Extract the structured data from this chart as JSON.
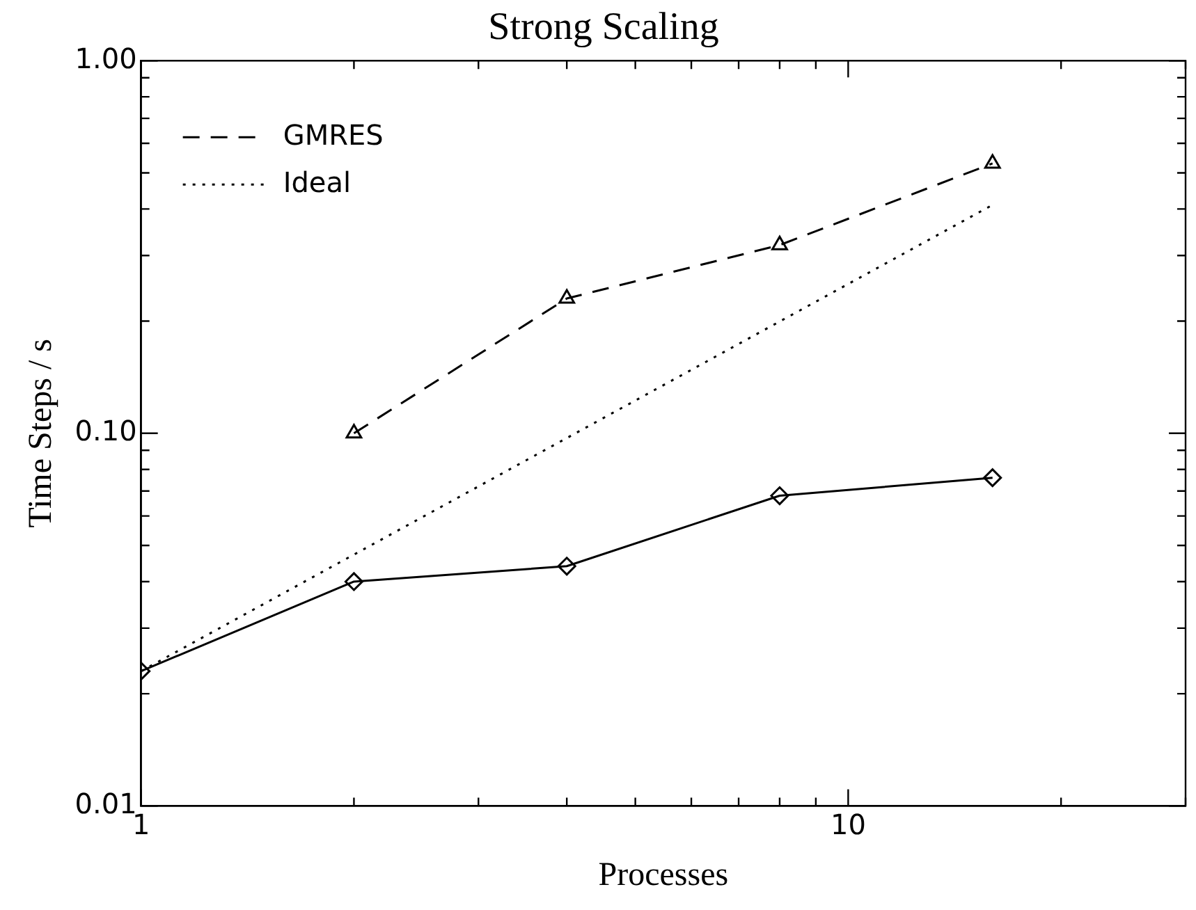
{
  "chart_data": {
    "type": "line",
    "title": "Strong Scaling",
    "xlabel": "Processes",
    "ylabel": "Time Steps / s",
    "log": "xy",
    "grid": false,
    "legend": "top left",
    "xlim": [
      1,
      30
    ],
    "xticks": [
      1,
      10,
      {
        "value": 2,
        "label": null
      },
      {
        "value": 3,
        "label": null
      },
      {
        "value": 4,
        "label": null
      },
      {
        "value": 5,
        "label": null
      },
      {
        "value": 6,
        "label": null
      },
      {
        "value": 7,
        "label": null
      },
      {
        "value": 8,
        "label": null
      },
      {
        "value": 9,
        "label": null
      },
      {
        "value": 20,
        "label": null
      },
      {
        "value": 30,
        "label": null
      }
    ],
    "ylim": [
      0.01,
      1
    ],
    "yticks": [
      {
        "value": 0.01,
        "label": "0.01"
      },
      {
        "value": 0.1,
        "label": "0.10"
      },
      {
        "value": 1,
        "label": "1.00"
      },
      {
        "value": 0.02,
        "label": null
      },
      {
        "value": 0.03,
        "label": null
      },
      {
        "value": 0.04,
        "label": null
      },
      {
        "value": 0.05,
        "label": null
      },
      {
        "value": 0.06,
        "label": null
      },
      {
        "value": 0.07,
        "label": null
      },
      {
        "value": 0.08,
        "label": null
      },
      {
        "value": 0.09,
        "label": null
      },
      {
        "value": 0.2,
        "label": null
      },
      {
        "value": 0.3,
        "label": null
      },
      {
        "value": 0.4,
        "label": null
      },
      {
        "value": 0.5,
        "label": null
      },
      {
        "value": 0.6,
        "label": null
      },
      {
        "value": 0.7,
        "label": null
      },
      {
        "value": 0.8,
        "label": null
      },
      {
        "value": 0.9,
        "label": null
      }
    ],
    "series": [
      {
        "color": "#000000",
        "x": [
          1,
          2,
          4,
          8,
          16
        ],
        "values": [
          0.023,
          0.04,
          0.044,
          0.068,
          0.076
        ],
        "marker": "diamond",
        "line_style": "solid"
      },
      {
        "name": "GMRES",
        "color": "#000000",
        "x": [
          2,
          4,
          8,
          16
        ],
        "values": [
          0.1,
          0.23,
          0.32,
          0.53
        ],
        "marker": "triangle",
        "line_style": "dashed"
      },
      {
        "name": "Ideal",
        "color": "#000000",
        "x": [
          1,
          16
        ],
        "values": [
          0.023,
          0.41
        ],
        "marker": "none",
        "line_style": "dotted"
      }
    ]
  }
}
